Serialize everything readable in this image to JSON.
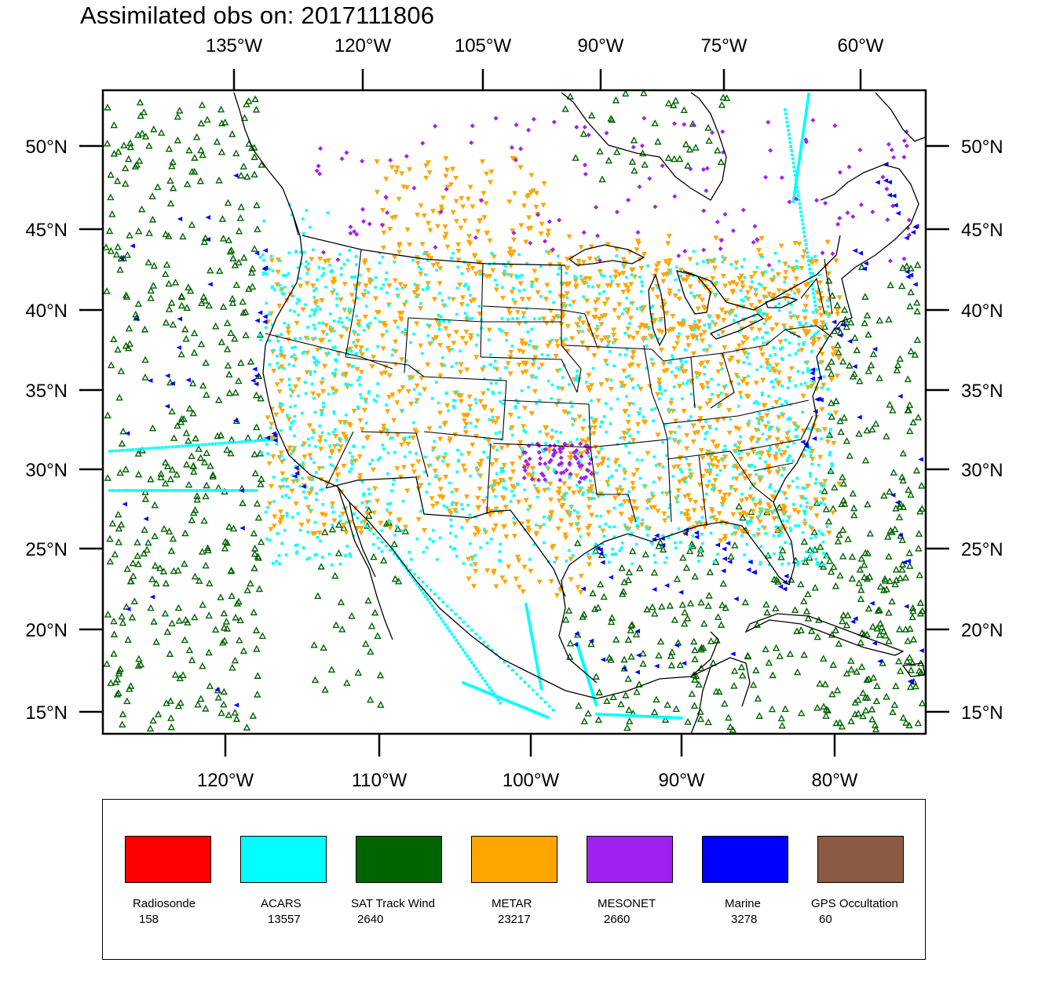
{
  "title": "Assimilated obs on: 2017111806",
  "axes": {
    "top_lon_labels": [
      "135°W",
      "120°W",
      "105°W",
      "90°W",
      "75°W",
      "60°W"
    ],
    "bottom_lon_labels": [
      "120°W",
      "110°W",
      "100°W",
      "90°W",
      "80°W"
    ],
    "lat_labels": [
      "50°N",
      "45°N",
      "40°N",
      "35°N",
      "30°N",
      "25°N",
      "20°N",
      "15°N"
    ]
  },
  "legend": [
    {
      "name": "Radiosonde",
      "count": "158",
      "color": "#ff0000"
    },
    {
      "name": "ACARS",
      "count": "13557",
      "color": "#00ffff"
    },
    {
      "name": "SAT Track Wind",
      "count": "2640",
      "color": "#006400"
    },
    {
      "name": "METAR",
      "count": "23217",
      "color": "#ffa500"
    },
    {
      "name": "MESONET",
      "count": "2660",
      "color": "#a020f0"
    },
    {
      "name": "Marine",
      "count": "3278",
      "color": "#0000ff"
    },
    {
      "name": "GPS Occultation",
      "count": "60",
      "color": "#8b5a44"
    }
  ]
}
